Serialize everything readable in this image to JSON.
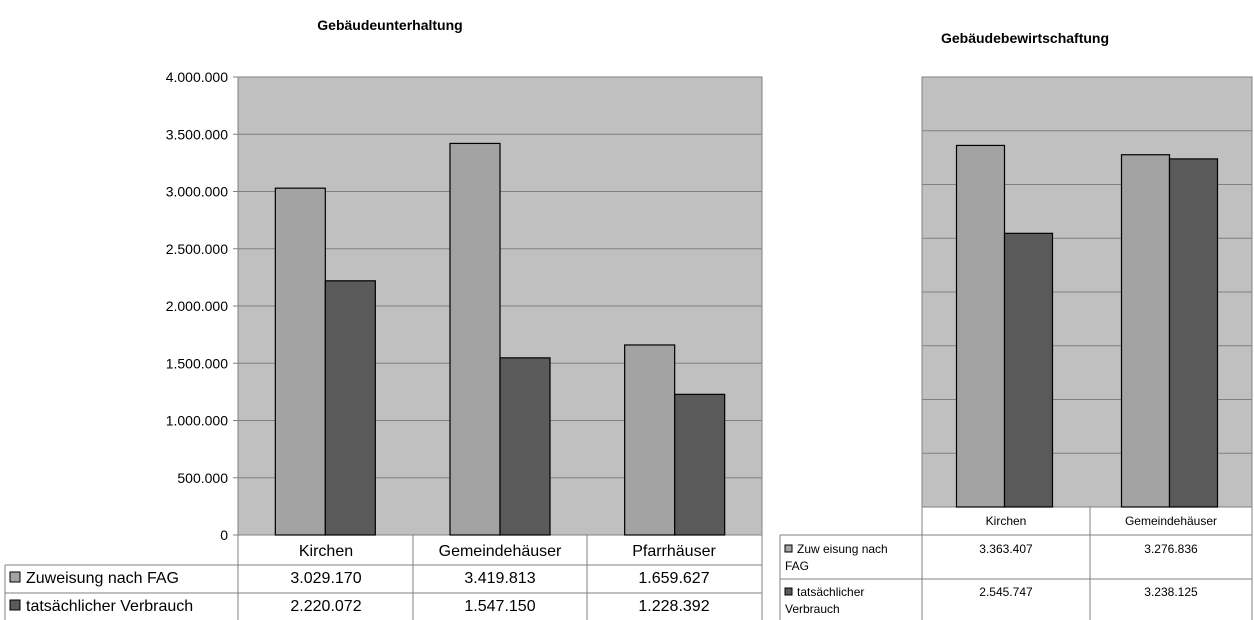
{
  "chart_data": [
    {
      "type": "bar",
      "title": "Gebäudeunterhaltung",
      "categories": [
        "Kirchen",
        "Gemeindehäuser",
        "Pfarrhäuser"
      ],
      "series": [
        {
          "name": "Zuweisung nach FAG",
          "values": [
            3029170,
            3419813,
            1659627
          ],
          "labels": [
            "3.029.170",
            "3.419.813",
            "1.659.627"
          ],
          "color": "#a3a3a3"
        },
        {
          "name": "tatsächlicher Verbrauch",
          "values": [
            2220072,
            1547150,
            1228392
          ],
          "labels": [
            "2.220.072",
            "1.547.150",
            "1.228.392"
          ],
          "color": "#5a5a5a"
        }
      ],
      "ylim": [
        0,
        4000000
      ],
      "yticks": [
        "0",
        "500.000",
        "1.000.000",
        "1.500.000",
        "2.000.000",
        "2.500.000",
        "3.000.000",
        "3.500.000",
        "4.000.000"
      ],
      "grid": true,
      "legend": "data-table-bottom"
    },
    {
      "type": "bar",
      "title": "Gebäudebewirtschaftung",
      "categories": [
        "Kirchen",
        "Gemeindehäuser"
      ],
      "series": [
        {
          "name": "Zuw eisung nach FAG",
          "values": [
            3363407,
            3276836
          ],
          "labels": [
            "3.363.407",
            "3.276.836"
          ],
          "color": "#a3a3a3"
        },
        {
          "name": "tatsächlicher Verbrauch",
          "values": [
            2545747,
            3238125
          ],
          "labels": [
            "2.545.747",
            "3.238.125"
          ],
          "color": "#5a5a5a"
        }
      ],
      "ylim": [
        0,
        4000000
      ],
      "grid": true,
      "legend": "data-table-bottom"
    }
  ]
}
